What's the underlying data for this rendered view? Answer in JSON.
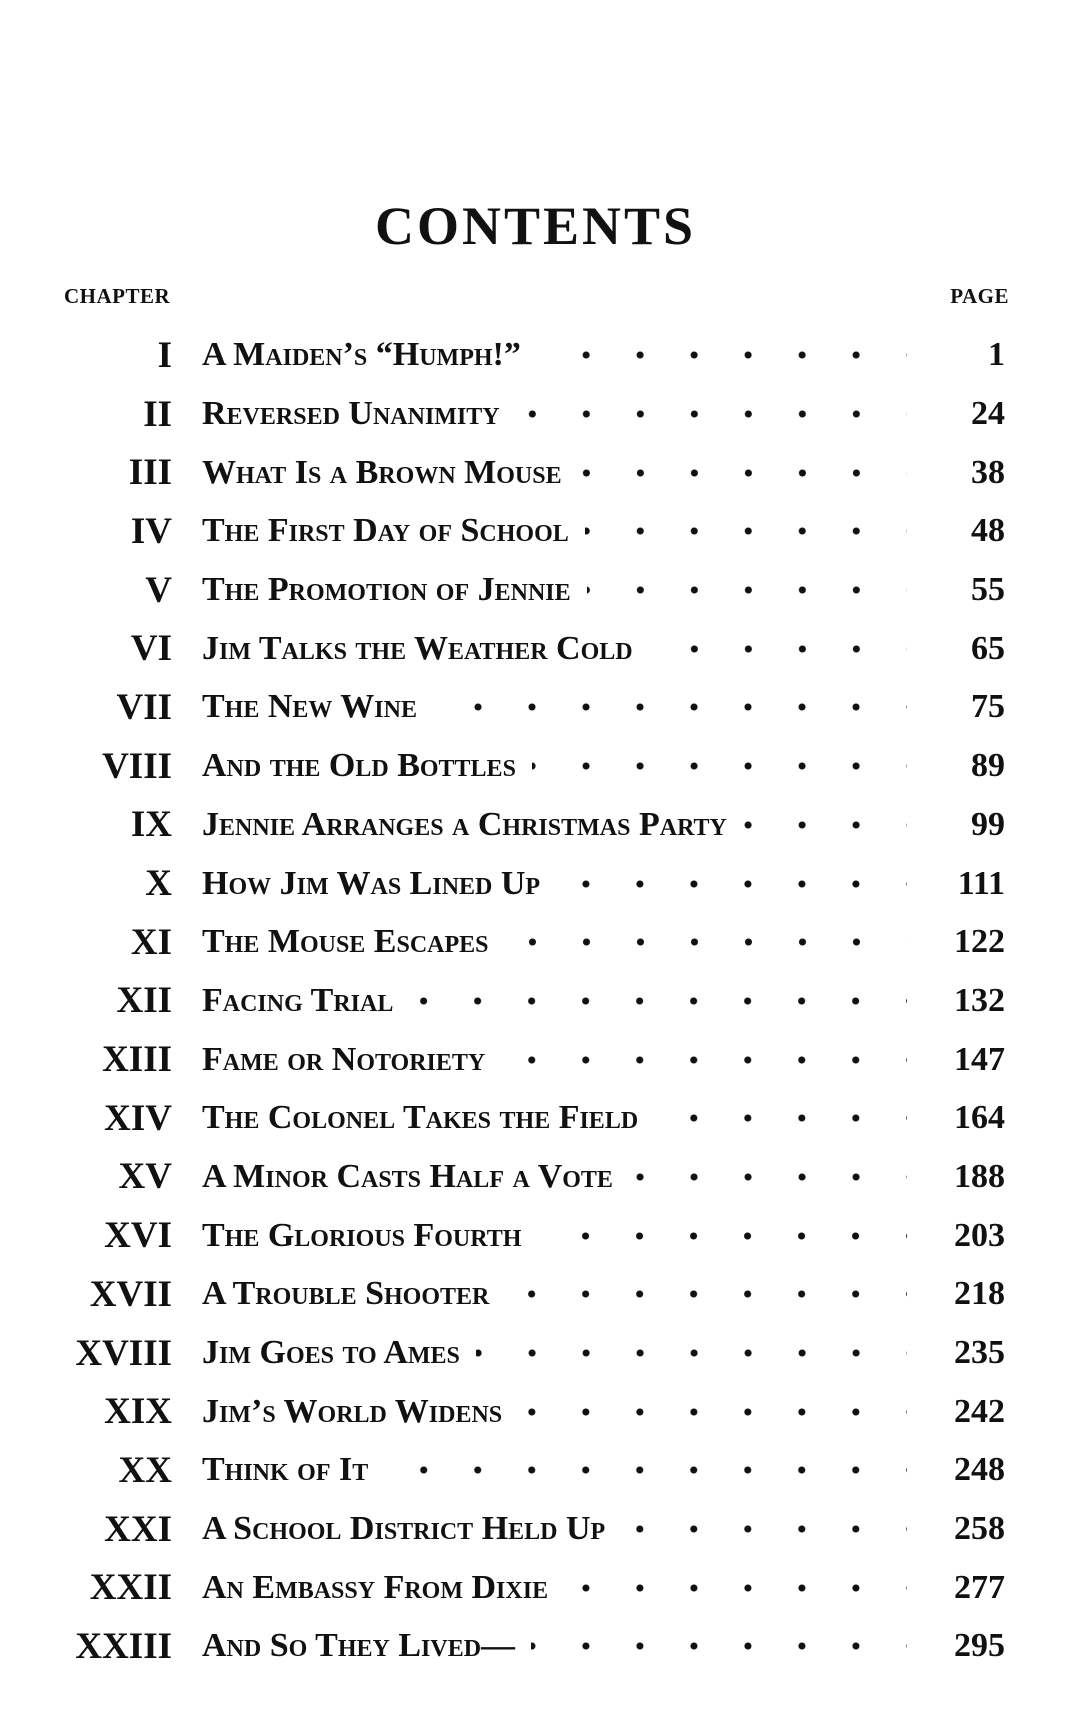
{
  "title": "CONTENTS",
  "header": {
    "chapter": "CHAPTER",
    "page": "PAGE"
  },
  "chapters": [
    {
      "num": "I",
      "title": "A Maiden’s “Humph!”",
      "page": "1"
    },
    {
      "num": "II",
      "title": "Reversed Unanimity",
      "page": "24"
    },
    {
      "num": "III",
      "title": "What Is a Brown Mouse",
      "page": "38"
    },
    {
      "num": "IV",
      "title": "The First Day of School",
      "page": "48"
    },
    {
      "num": "V",
      "title": "The Promotion of Jennie",
      "page": "55"
    },
    {
      "num": "VI",
      "title": "Jim Talks the Weather Cold",
      "page": "65"
    },
    {
      "num": "VII",
      "title": "The New Wine",
      "page": "75"
    },
    {
      "num": "VIII",
      "title": "And the Old Bottles",
      "page": "89"
    },
    {
      "num": "IX",
      "title": "Jennie Arranges a Christmas Party",
      "page": "99"
    },
    {
      "num": "X",
      "title": "How Jim Was Lined Up",
      "page": "111"
    },
    {
      "num": "XI",
      "title": "The Mouse Escapes",
      "page": "122"
    },
    {
      "num": "XII",
      "title": "Facing Trial",
      "page": "132"
    },
    {
      "num": "XIII",
      "title": "Fame or Notoriety",
      "page": "147"
    },
    {
      "num": "XIV",
      "title": "The Colonel Takes the Field",
      "page": "164"
    },
    {
      "num": "XV",
      "title": "A Minor Casts Half a Vote",
      "page": "188"
    },
    {
      "num": "XVI",
      "title": "The Glorious Fourth",
      "page": "203"
    },
    {
      "num": "XVII",
      "title": "A Trouble Shooter",
      "page": "218"
    },
    {
      "num": "XVIII",
      "title": "Jim Goes to Ames",
      "page": "235"
    },
    {
      "num": "XIX",
      "title": "Jim’s World Widens",
      "page": "242"
    },
    {
      "num": "XX",
      "title": "Think of It",
      "page": "248"
    },
    {
      "num": "XXI",
      "title": "A School District Held Up",
      "page": "258"
    },
    {
      "num": "XXII",
      "title": "An Embassy From Dixie",
      "page": "277"
    },
    {
      "num": "XXIII",
      "title": "And So They Lived—",
      "page": "295"
    }
  ]
}
